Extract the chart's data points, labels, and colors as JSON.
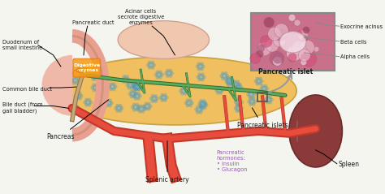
{
  "bg_color": "#f5f5f0",
  "title": "",
  "labels": {
    "splenic_artery": "Splenic artery",
    "pancreas": "Pancreas",
    "bile_duct": "Bile duct (from\ngall bladder)",
    "common_bile_duct": "Common bile duct",
    "digestive_enzymes": "Digestive\nenzymes",
    "duodenum": "Duodenum of\nsmall intestine",
    "pancreatic_duct": "Pancreatic duct",
    "acinar_cells": "Acinar cells\nsecrote digestive\nenzymes",
    "pancreatic_hormones": "Pancreatic\nhormones:\n• Insulin\n• Glucagon",
    "pancreatic_islets": "Pancreatic islets",
    "spleen": "Spleen",
    "pancreatic_islet_label": "Pancreatic islet",
    "alpha_cells": "Alpha cells",
    "beta_cells": "Beta cells",
    "exocrine_acinus": "Exocrine acinus"
  },
  "colors": {
    "pancreas_body": "#f0c060",
    "artery": "#c0392b",
    "duct_green": "#4a7c4e",
    "duct_bile": "#8B6914",
    "duodenum": "#e8a090",
    "spleen": "#8B3A3A",
    "text_main": "#1a1a1a",
    "text_hormone": "#9b59b6",
    "text_enzyme": "#e67e22",
    "islet_box": "#555555",
    "arrow_color": "#aaaaaa",
    "micro_bg": "#c9708a",
    "micro_border": "#888888"
  },
  "figsize": [
    4.74,
    2.39
  ],
  "dpi": 100
}
